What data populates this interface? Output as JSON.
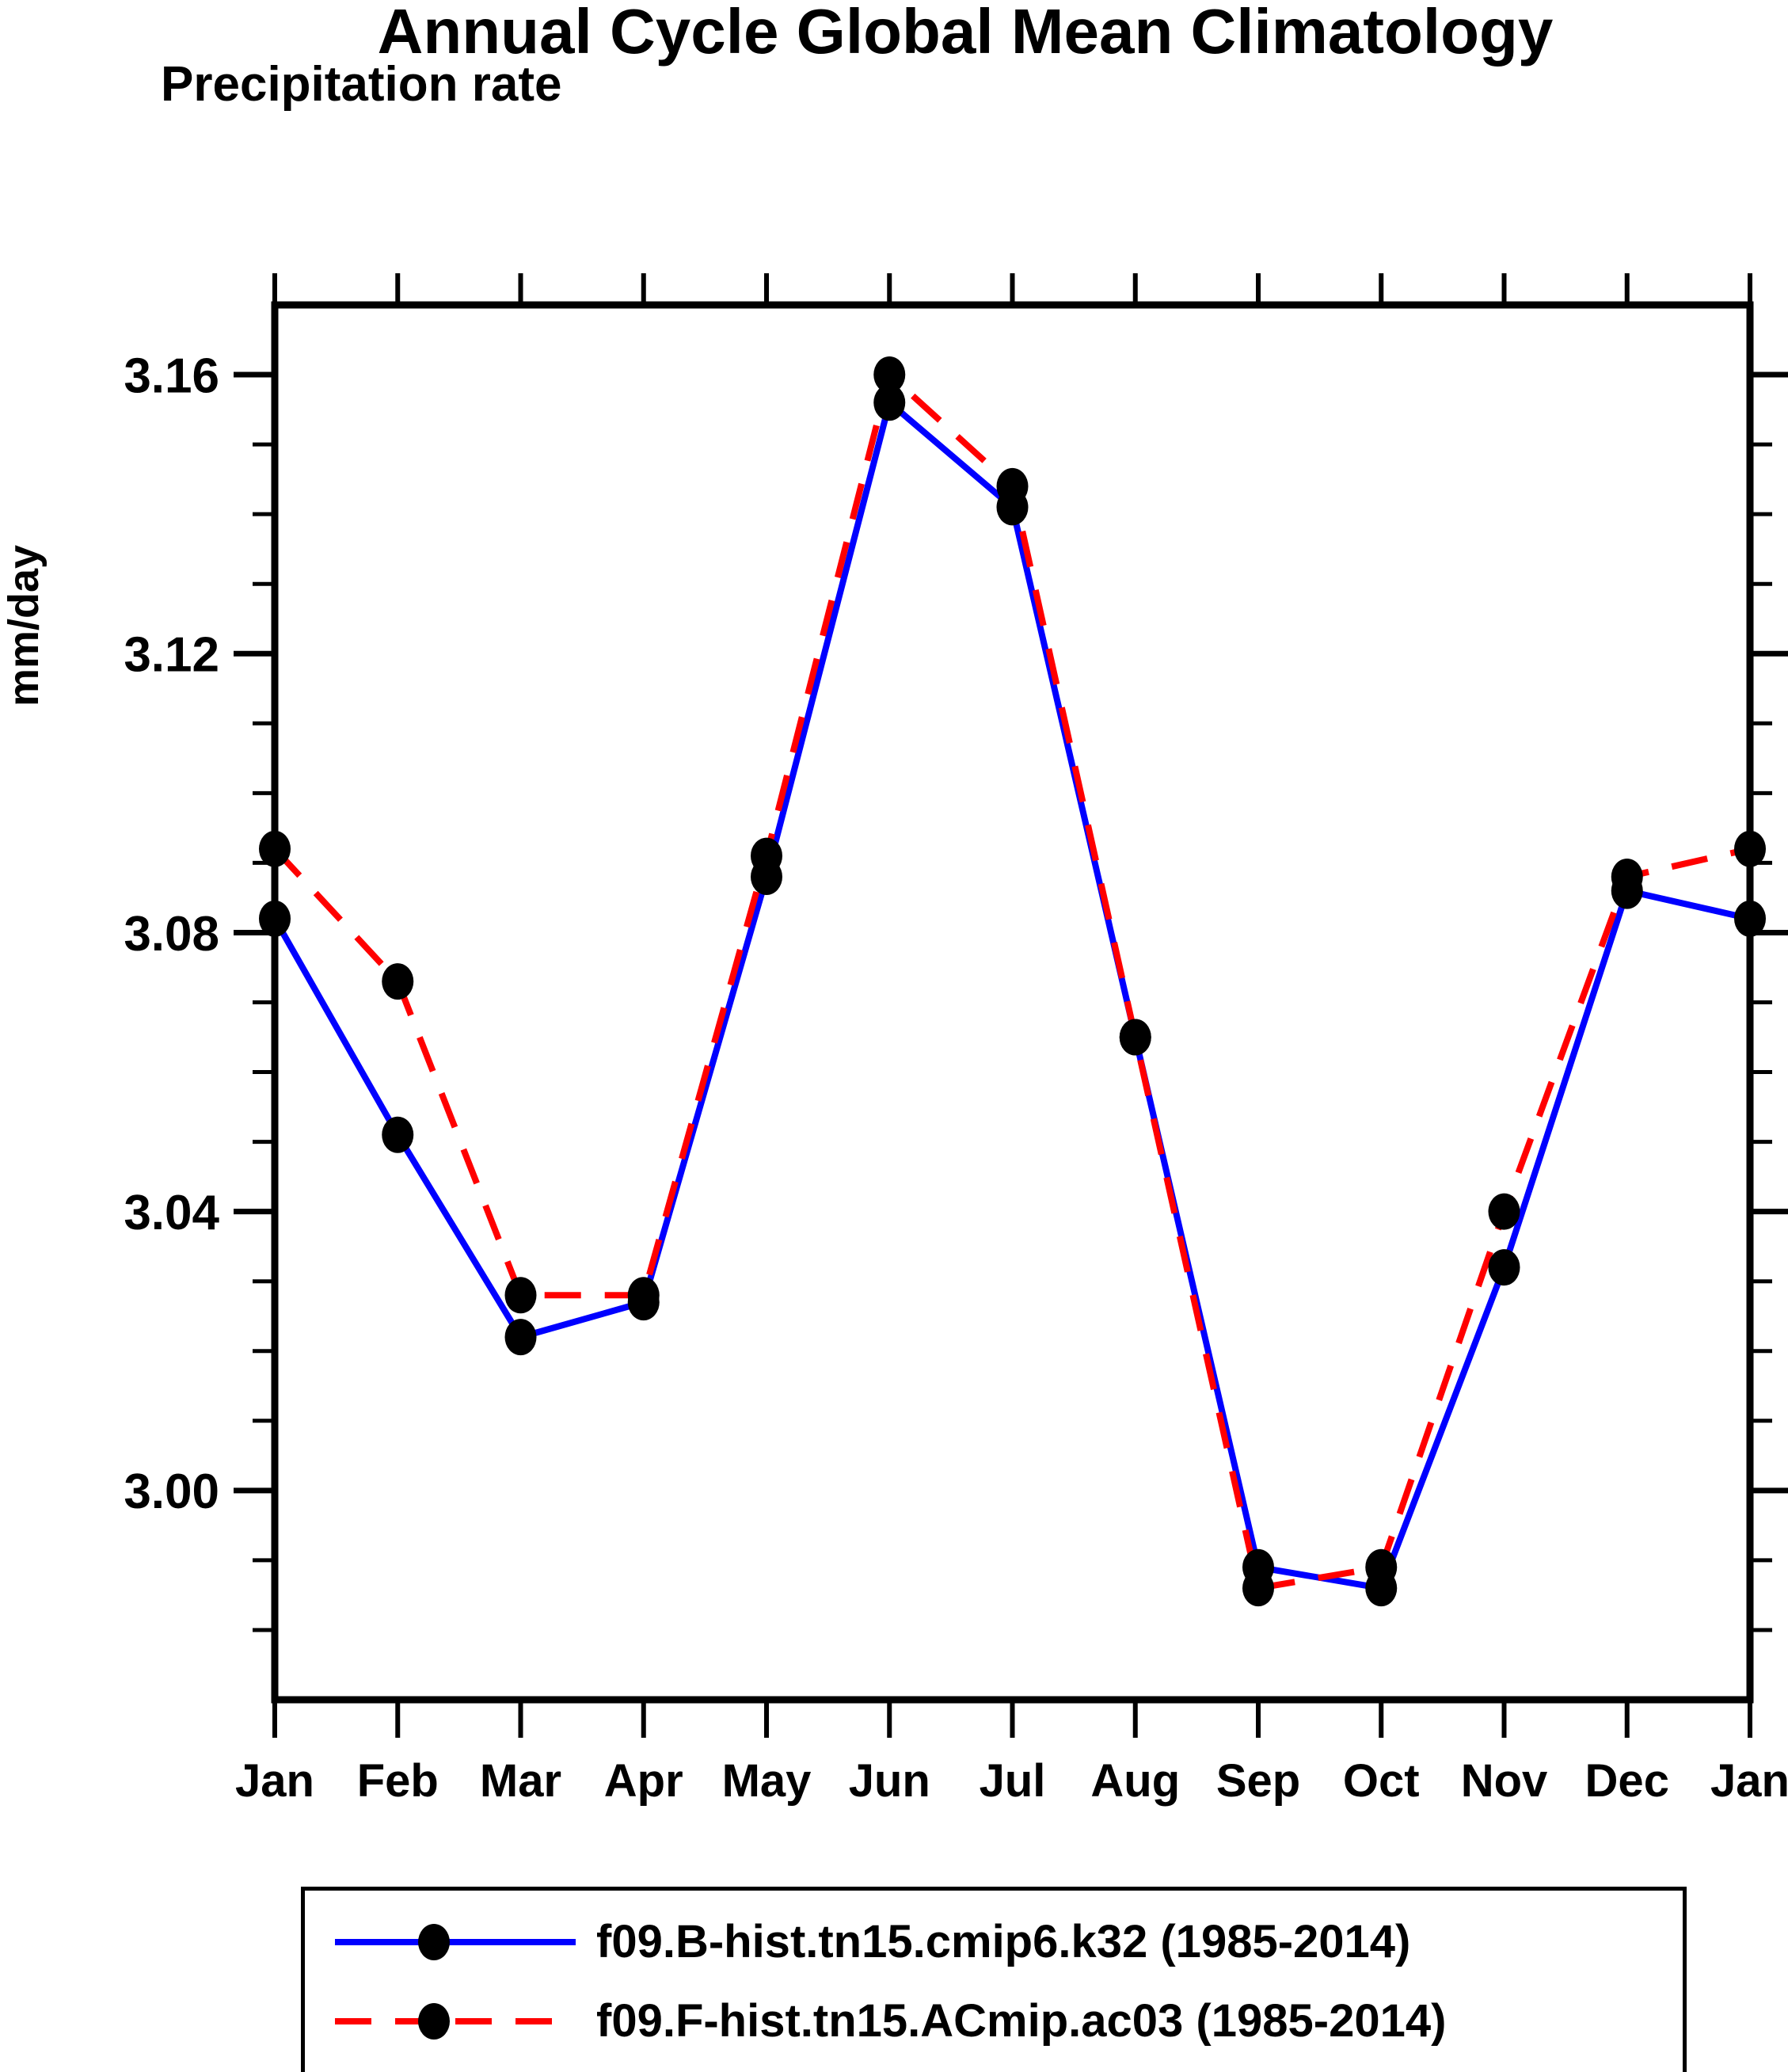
{
  "title": "Annual Cycle Global Mean Climatology",
  "subtitle": "Precipitation rate",
  "y_axis_title": "mm/day",
  "colors": {
    "series_1": "#0000ff",
    "series_2": "#ff0000",
    "marker": "#000000",
    "frame": "#000000",
    "background": "#ffffff"
  },
  "chart_data": {
    "type": "line",
    "title": "Annual Cycle Global Mean Climatology",
    "subtitle": "Precipitation rate",
    "ylabel": "mm/day",
    "xlabel": "",
    "categories": [
      "Jan",
      "Feb",
      "Mar",
      "Apr",
      "May",
      "Jun",
      "Jul",
      "Aug",
      "Sep",
      "Oct",
      "Nov",
      "Dec",
      "Jan"
    ],
    "series": [
      {
        "name": "f09.B-hist.tn15.cmip6.k32 (1985-2014)",
        "color": "#0000ff",
        "line_style": "solid",
        "marker": "black-dot",
        "values": [
          3.082,
          3.051,
          3.022,
          3.027,
          3.088,
          3.156,
          3.141,
          3.065,
          2.989,
          2.986,
          3.032,
          3.086,
          3.082
        ]
      },
      {
        "name": "f09.F-hist.tn15.ACmip.ac03 (1985-2014)",
        "color": "#ff0000",
        "line_style": "dashed",
        "marker": "black-dot",
        "values": [
          3.092,
          3.073,
          3.028,
          3.028,
          3.091,
          3.16,
          3.144,
          3.065,
          2.986,
          2.989,
          3.04,
          3.088,
          3.092
        ]
      }
    ],
    "ylim": [
      2.97,
      3.17
    ],
    "ytick_major": [
      3.0,
      3.04,
      3.08,
      3.12,
      3.16
    ],
    "ytick_major_labels": [
      "3.00",
      "3.04",
      "3.08",
      "3.12",
      "3.16"
    ],
    "ytick_minor_step": 0.01,
    "grid": false,
    "legend_position": "bottom",
    "frame": "box-with-outward-ticks"
  }
}
